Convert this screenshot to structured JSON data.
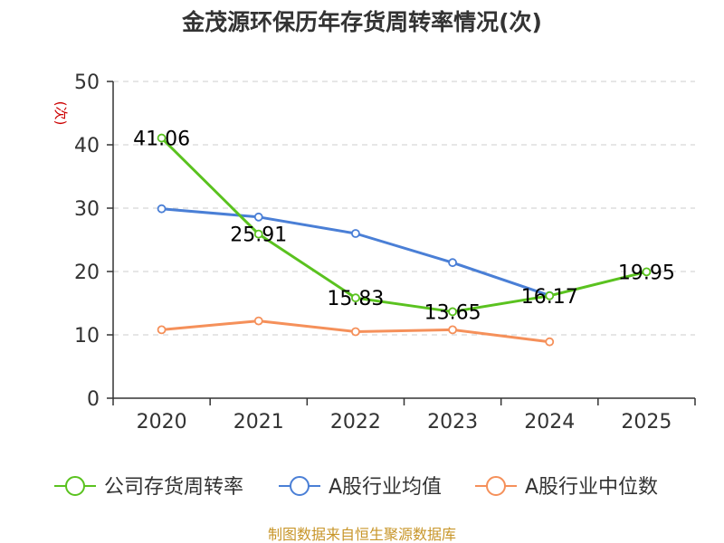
{
  "chart_data": {
    "type": "line",
    "title": "金茂源环保历年存货周转率情况(次)",
    "ylabel": "(次)",
    "xlabel": "",
    "ylim": [
      0,
      50
    ],
    "yticks": [
      0,
      10,
      20,
      30,
      40,
      50
    ],
    "categories": [
      "2020",
      "2021",
      "2022",
      "2023",
      "2024",
      "2025"
    ],
    "grid": true,
    "legend_position": "bottom",
    "series": [
      {
        "name": "公司存货周转率",
        "color": "#5ac21f",
        "values": [
          41.06,
          25.91,
          15.83,
          13.65,
          16.17,
          19.95
        ],
        "labels": [
          "41.06",
          "25.91",
          "15.83",
          "13.65",
          "16.17",
          "19.95"
        ]
      },
      {
        "name": "A股行业均值",
        "color": "#4a7fd6",
        "values": [
          29.9,
          28.6,
          26.0,
          21.4,
          16.2,
          null
        ]
      },
      {
        "name": "A股行业中位数",
        "color": "#f5905a",
        "values": [
          10.8,
          12.2,
          10.5,
          10.8,
          8.9,
          null
        ]
      }
    ],
    "source": "制图数据来自恒生聚源数据库"
  }
}
